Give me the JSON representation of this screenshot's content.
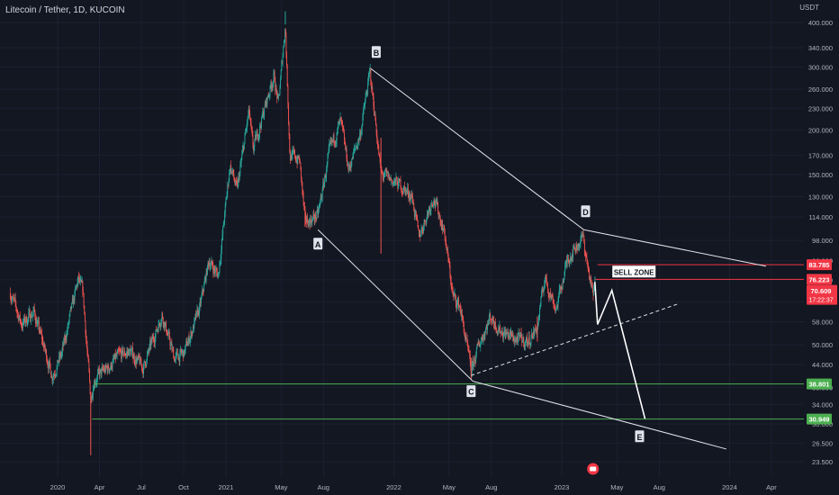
{
  "header": {
    "symbol_title": "Litecoin / Tether, 1D, KUCOIN",
    "price_unit": "USDT"
  },
  "colors": {
    "background": "#131722",
    "up": "#26a69a",
    "down": "#ef5350",
    "axis_text": "#b2b5be",
    "pattern_line": "#e0e3eb",
    "resistance": "#f23645",
    "support": "#4caf50"
  },
  "chart_data": {
    "type": "candlestick",
    "scale": "log",
    "ylim": [
      21.5,
      450
    ],
    "y_ticks": [
      "400.000",
      "340.000",
      "300.000",
      "260.000",
      "230.000",
      "200.000",
      "170.000",
      "150.000",
      "130.000",
      "114.000",
      "98.000",
      "86.000",
      "76.000",
      "66.000",
      "58.000",
      "50.000",
      "44.000",
      "38.000",
      "34.000",
      "30.000",
      "26.500",
      "23.500"
    ],
    "x_ticks": [
      {
        "label": "2020",
        "date": "2020-01-01"
      },
      {
        "label": "Apr",
        "date": "2020-04-01"
      },
      {
        "label": "Jul",
        "date": "2020-07-01"
      },
      {
        "label": "Oct",
        "date": "2020-10-01"
      },
      {
        "label": "2021",
        "date": "2021-01-01"
      },
      {
        "label": "May",
        "date": "2021-05-01"
      },
      {
        "label": "Aug",
        "date": "2021-08-01"
      },
      {
        "label": "2022",
        "date": "2022-01-01"
      },
      {
        "label": "May",
        "date": "2022-05-01"
      },
      {
        "label": "Aug",
        "date": "2022-08-01"
      },
      {
        "label": "2023",
        "date": "2023-01-01"
      },
      {
        "label": "May",
        "date": "2023-05-01"
      },
      {
        "label": "Aug",
        "date": "2023-08-01"
      },
      {
        "label": "2024",
        "date": "2024-01-01"
      },
      {
        "label": "Apr",
        "date": "2024-04-01"
      }
    ],
    "price_path": [
      {
        "date": "2019-09-20",
        "price": 70
      },
      {
        "date": "2019-10-15",
        "price": 57
      },
      {
        "date": "2019-11-10",
        "price": 62
      },
      {
        "date": "2019-12-20",
        "price": 41
      },
      {
        "date": "2020-01-10",
        "price": 47
      },
      {
        "date": "2020-02-15",
        "price": 76
      },
      {
        "date": "2020-02-25",
        "price": 70
      },
      {
        "date": "2020-03-13",
        "price": 35
      },
      {
        "date": "2020-03-20",
        "price": 40
      },
      {
        "date": "2020-04-20",
        "price": 43
      },
      {
        "date": "2020-05-10",
        "price": 46
      },
      {
        "date": "2020-06-05",
        "price": 48
      },
      {
        "date": "2020-07-05",
        "price": 43
      },
      {
        "date": "2020-08-15",
        "price": 61
      },
      {
        "date": "2020-09-10",
        "price": 46
      },
      {
        "date": "2020-10-01",
        "price": 47
      },
      {
        "date": "2020-11-05",
        "price": 63
      },
      {
        "date": "2020-11-25",
        "price": 86
      },
      {
        "date": "2020-12-15",
        "price": 78
      },
      {
        "date": "2021-01-10",
        "price": 160
      },
      {
        "date": "2021-01-25",
        "price": 135
      },
      {
        "date": "2021-02-20",
        "price": 225
      },
      {
        "date": "2021-03-01",
        "price": 175
      },
      {
        "date": "2021-04-15",
        "price": 285
      },
      {
        "date": "2021-04-25",
        "price": 235
      },
      {
        "date": "2021-05-10",
        "price": 395
      },
      {
        "date": "2021-05-20",
        "price": 170
      },
      {
        "date": "2021-06-10",
        "price": 165
      },
      {
        "date": "2021-06-22",
        "price": 110
      },
      {
        "date": "2021-07-20",
        "price": 115
      },
      {
        "date": "2021-08-15",
        "price": 175
      },
      {
        "date": "2021-09-07",
        "price": 210
      },
      {
        "date": "2021-09-25",
        "price": 155
      },
      {
        "date": "2021-10-20",
        "price": 195
      },
      {
        "date": "2021-11-10",
        "price": 290
      },
      {
        "date": "2021-11-20",
        "price": 225
      },
      {
        "date": "2021-12-04",
        "price": 150
      },
      {
        "date": "2022-01-15",
        "price": 140
      },
      {
        "date": "2022-02-10",
        "price": 130
      },
      {
        "date": "2022-02-24",
        "price": 100
      },
      {
        "date": "2022-03-28",
        "price": 130
      },
      {
        "date": "2022-04-20",
        "price": 105
      },
      {
        "date": "2022-05-10",
        "price": 68
      },
      {
        "date": "2022-05-25",
        "price": 64
      },
      {
        "date": "2022-06-18",
        "price": 42
      },
      {
        "date": "2022-07-05",
        "price": 50
      },
      {
        "date": "2022-07-30",
        "price": 60
      },
      {
        "date": "2022-08-20",
        "price": 55
      },
      {
        "date": "2022-09-20",
        "price": 52
      },
      {
        "date": "2022-10-20",
        "price": 51
      },
      {
        "date": "2022-11-09",
        "price": 56
      },
      {
        "date": "2022-11-25",
        "price": 77
      },
      {
        "date": "2022-12-20",
        "price": 63
      },
      {
        "date": "2023-01-15",
        "price": 88
      },
      {
        "date": "2023-02-16",
        "price": 100
      },
      {
        "date": "2023-03-10",
        "price": 68
      },
      {
        "date": "2023-03-15",
        "price": 76
      }
    ],
    "wave_points": [
      {
        "label": "A",
        "date": "2021-07-20",
        "price": 105
      },
      {
        "label": "B",
        "date": "2021-11-12",
        "price": 297
      },
      {
        "label": "C",
        "date": "2022-06-18",
        "price": 41
      },
      {
        "label": "D",
        "date": "2023-02-18",
        "price": 105
      },
      {
        "label": "E",
        "date": "2023-07-01",
        "price": 31
      }
    ],
    "trendlines": [
      {
        "name": "B-D resistance",
        "from": {
          "date": "2021-11-12",
          "price": 297
        },
        "to": {
          "date": "2023-02-18",
          "price": 105
        }
      },
      {
        "name": "D extension",
        "from": {
          "date": "2023-02-18",
          "price": 105
        },
        "to": {
          "date": "2024-03-20",
          "price": 83
        }
      },
      {
        "name": "A-C support",
        "from": {
          "date": "2021-07-20",
          "price": 105
        },
        "to": {
          "date": "2022-06-22",
          "price": 39.5
        }
      },
      {
        "name": "C extension",
        "from": {
          "date": "2022-06-22",
          "price": 39.5
        },
        "to": {
          "date": "2023-12-25",
          "price": 25.5
        }
      }
    ],
    "dashed_line": {
      "from": {
        "date": "2022-06-18",
        "price": 41
      },
      "to": {
        "date": "2023-09-10",
        "price": 65
      }
    },
    "projection": [
      {
        "date": "2023-03-14",
        "price": 75
      },
      {
        "date": "2023-03-20",
        "price": 57
      },
      {
        "date": "2023-04-20",
        "price": 71
      },
      {
        "date": "2023-07-01",
        "price": 31
      }
    ],
    "levels": [
      {
        "name": "resistance-high",
        "price": 83.785,
        "label": "83.785",
        "color": "#f23645",
        "from": "2023-03-20"
      },
      {
        "name": "resistance-low",
        "price": 76.223,
        "label": "76.223",
        "color": "#f23645",
        "from": "2023-03-15"
      },
      {
        "name": "support-upper",
        "price": 38.801,
        "label": "38.801",
        "color": "#4caf50",
        "from": "2020-03-20"
      },
      {
        "name": "support-lower",
        "price": 30.949,
        "label": "30.949",
        "color": "#4caf50",
        "from": "2020-03-16"
      }
    ],
    "zone_label": "SELL ZONE",
    "last_price": {
      "price": 70.609,
      "label": "70.609",
      "countdown": "17:22:37",
      "color": "#f23645"
    }
  }
}
